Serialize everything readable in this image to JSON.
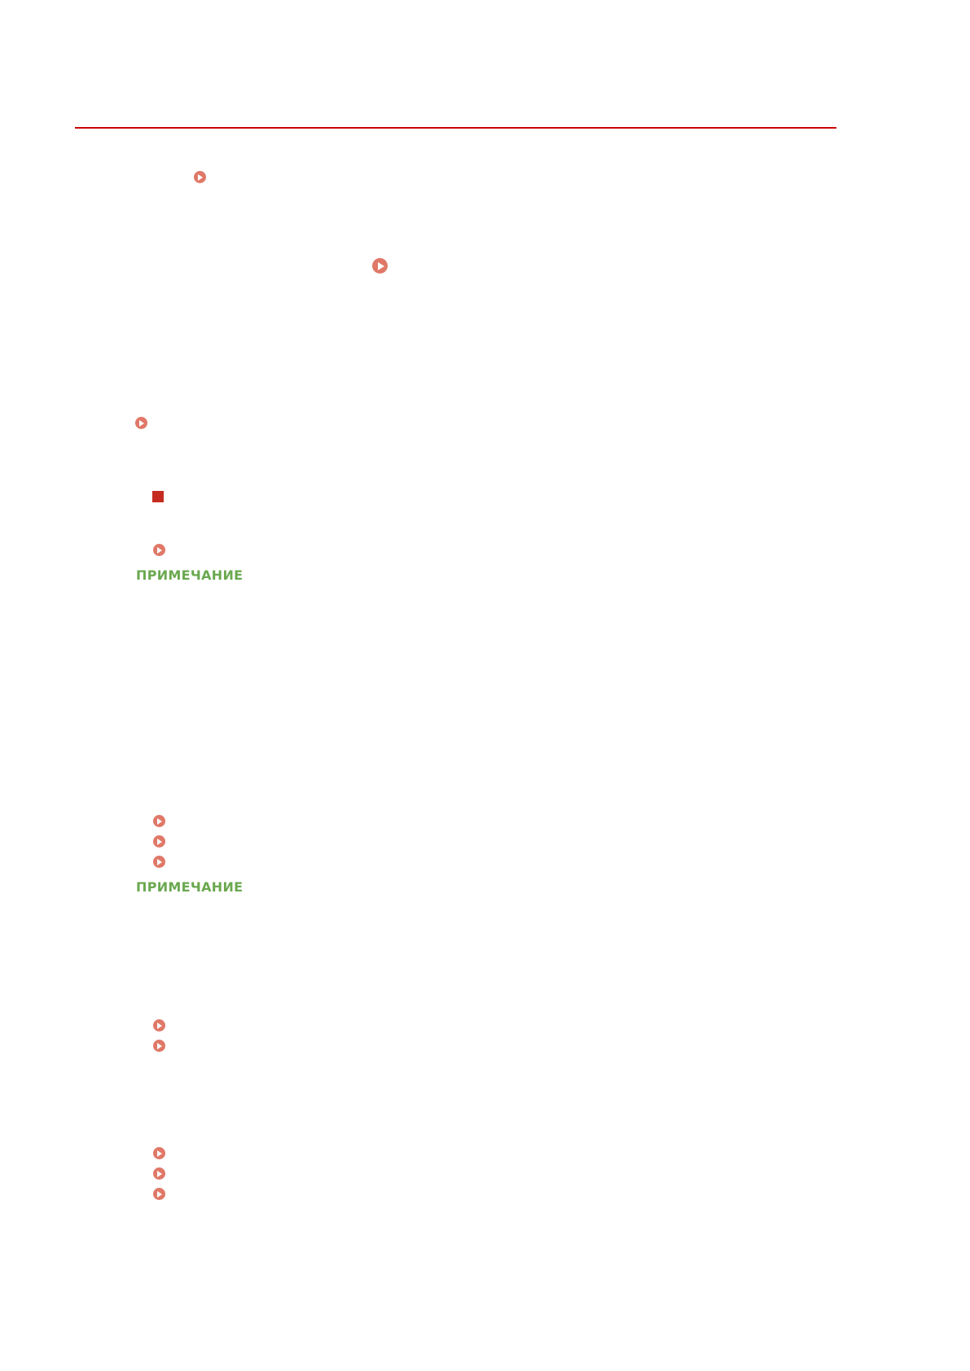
{
  "colors": {
    "rule": "#cc0000",
    "link_icon": "#e07868",
    "section_marker": "#c62b20",
    "note": "#6aa84f"
  },
  "icons": {
    "link": "play-circle-icon",
    "section": "red-square-icon"
  },
  "notes": [
    {
      "label": "ПРИМЕЧАНИЕ",
      "color": "#6aa84f"
    },
    {
      "label": "ПРИМЕЧАНИЕ",
      "color": "#6aa84f"
    }
  ]
}
